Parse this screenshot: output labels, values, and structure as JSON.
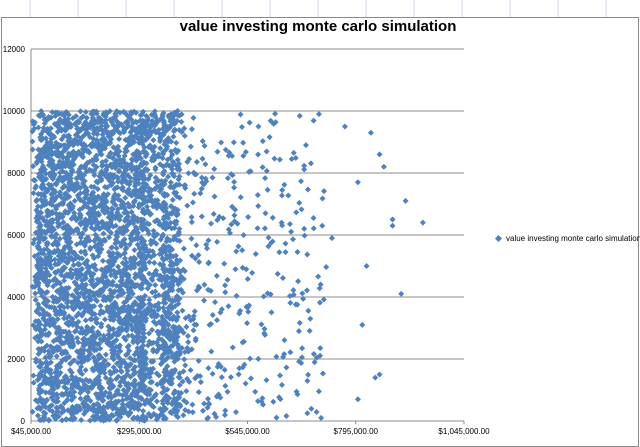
{
  "chart_data": {
    "type": "scatter",
    "title": "value investing monte carlo simulation",
    "xlabel": "",
    "ylabel": "",
    "xlim": [
      45000,
      1045000
    ],
    "ylim": [
      0,
      12000
    ],
    "x_ticks": [
      45000,
      295000,
      545000,
      795000,
      1045000
    ],
    "x_tick_labels": [
      "$45,000.00",
      "$295,000.00",
      "$545,000.00",
      "$795,000.00",
      "$1,045,000.00"
    ],
    "y_ticks": [
      0,
      2000,
      4000,
      6000,
      8000,
      10000,
      12000
    ],
    "y_tick_labels": [
      "0",
      "2000",
      "4000",
      "6000",
      "8000",
      "10000",
      "12000"
    ],
    "grid": "horizontal",
    "legend_position": "right",
    "series": [
      {
        "name": "value investing monte carlo simulation",
        "color": "#4f81bd",
        "marker": "diamond",
        "x_distribution": "dense between $60,000 and $330,000, thinning out toward $700,000 with sparse outliers",
        "y_distribution": "uniform between 0 and 10000",
        "points": [
          {
            "x": 950000,
            "y": 6400
          },
          {
            "x": 880000,
            "y": 6500
          },
          {
            "x": 880000,
            "y": 6300
          },
          {
            "x": 910000,
            "y": 7100
          },
          {
            "x": 860000,
            "y": 8200
          },
          {
            "x": 850000,
            "y": 8600
          },
          {
            "x": 830000,
            "y": 9300
          },
          {
            "x": 900000,
            "y": 4100
          },
          {
            "x": 850000,
            "y": 1500
          },
          {
            "x": 840000,
            "y": 1400
          },
          {
            "x": 820000,
            "y": 5000
          },
          {
            "x": 810000,
            "y": 3100
          },
          {
            "x": 800000,
            "y": 7700
          },
          {
            "x": 770000,
            "y": 9500
          },
          {
            "x": 710000,
            "y": 9900
          },
          {
            "x": 800000,
            "y": 700
          },
          {
            "x": 715000,
            "y": 100
          },
          {
            "x": 700000,
            "y": 1900
          },
          {
            "x": 740000,
            "y": 5900
          },
          {
            "x": 690000,
            "y": 3300
          },
          {
            "x": 680000,
            "y": 8900
          }
        ]
      }
    ]
  }
}
